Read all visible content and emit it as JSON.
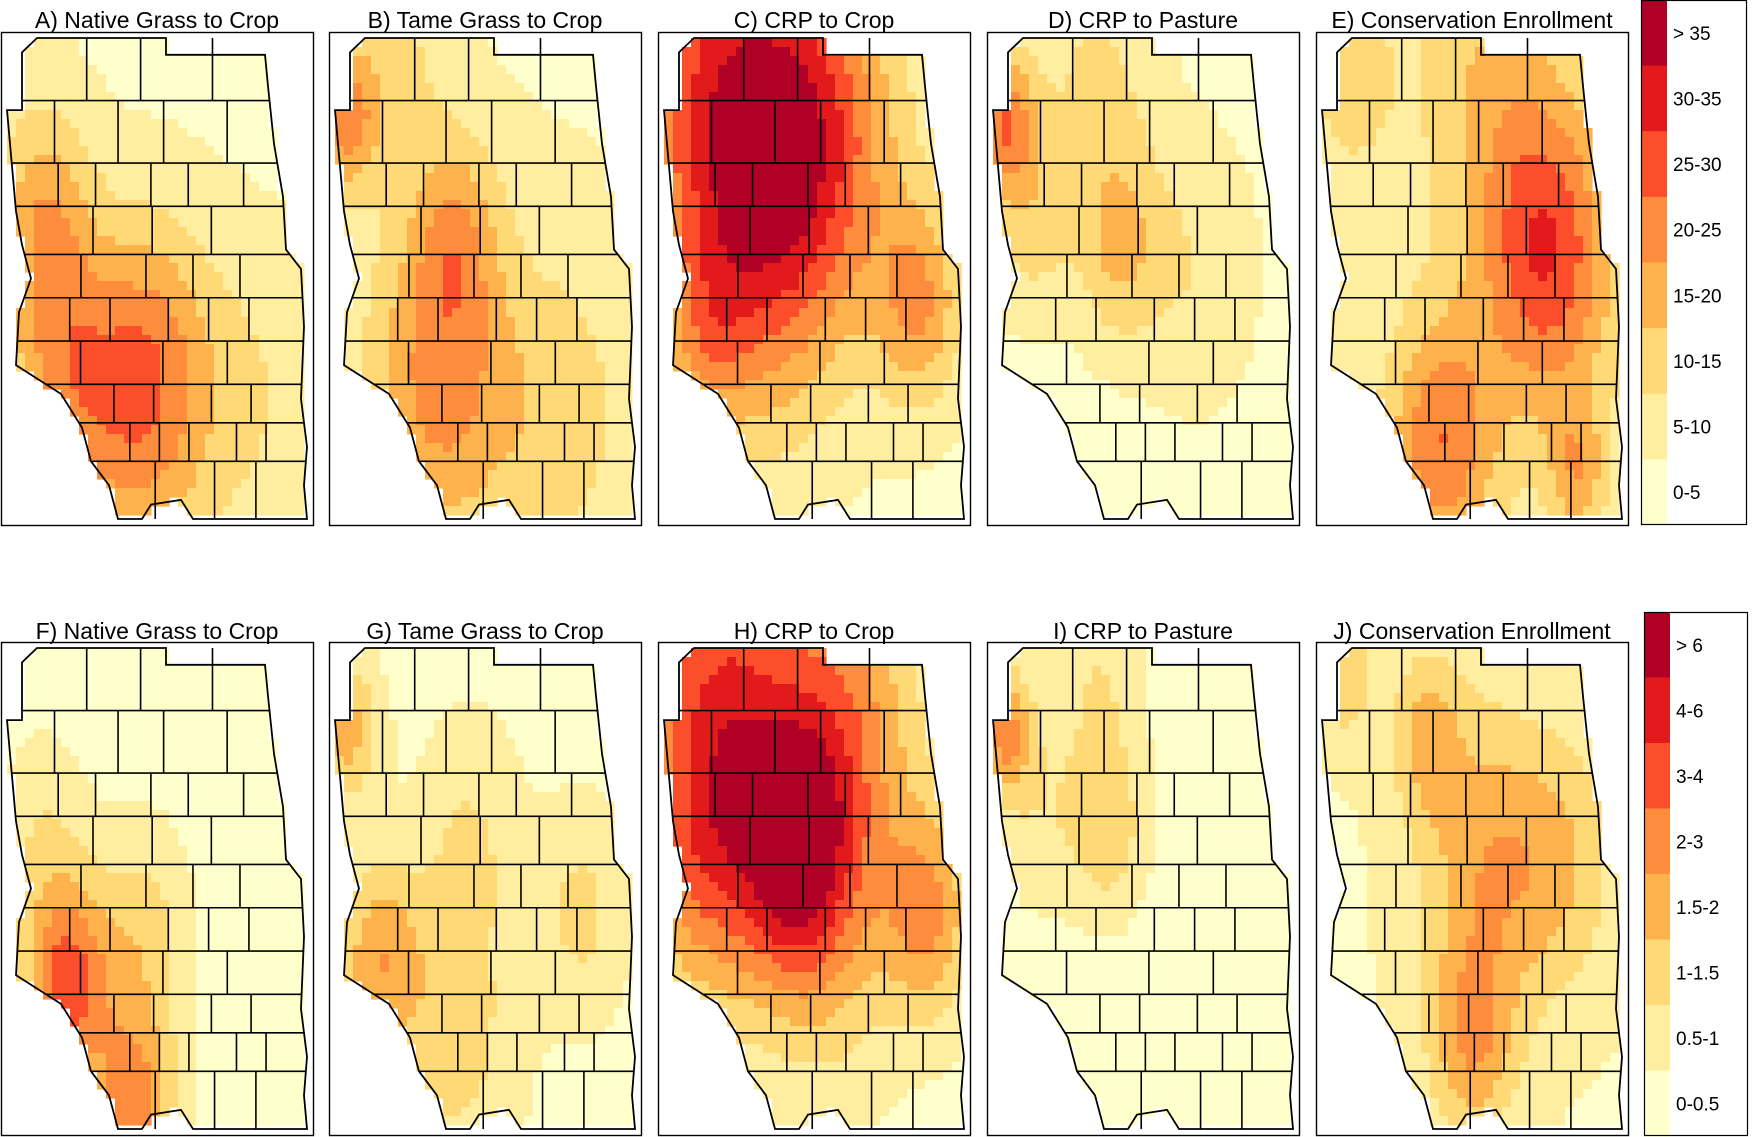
{
  "rows": [
    {
      "panels": [
        {
          "title": "A) Native Grass to Crop",
          "hotspots": [
            {
              "u": 0.2,
              "v": 0.7,
              "r": 0.2,
              "w": 3.2
            },
            {
              "u": 0.48,
              "v": 0.66,
              "r": 0.2,
              "w": 3.0
            },
            {
              "u": 0.12,
              "v": 0.36,
              "r": 0.16,
              "w": 2.6
            },
            {
              "u": 0.45,
              "v": 0.92,
              "r": 0.22,
              "w": 1.6
            },
            {
              "u": 0.8,
              "v": 0.75,
              "r": 0.22,
              "w": 1.2
            }
          ],
          "base": 0.8
        },
        {
          "title": "B) Tame Grass to Crop",
          "hotspots": [
            {
              "u": 0.35,
              "v": 0.71,
              "r": 0.24,
              "w": 3.5
            },
            {
              "u": 0.04,
              "v": 0.17,
              "r": 0.1,
              "w": 3.5
            },
            {
              "u": 0.4,
              "v": 0.4,
              "r": 0.14,
              "w": 2.2
            },
            {
              "u": 0.75,
              "v": 0.78,
              "r": 0.24,
              "w": 1.6
            },
            {
              "u": 0.2,
              "v": 0.05,
              "r": 0.15,
              "w": 1.4
            }
          ],
          "base": 0.9
        },
        {
          "title": "C) CRP to Crop",
          "hotspots": [
            {
              "u": 0.2,
              "v": 0.1,
              "r": 0.32,
              "w": 4.8
            },
            {
              "u": 0.55,
              "v": 0.18,
              "r": 0.26,
              "w": 3.2
            },
            {
              "u": 0.35,
              "v": 0.42,
              "r": 0.28,
              "w": 3.2
            },
            {
              "u": 0.85,
              "v": 0.55,
              "r": 0.15,
              "w": 3.2
            },
            {
              "u": 0.15,
              "v": 0.62,
              "r": 0.14,
              "w": 1.8
            }
          ],
          "base": 0.7
        },
        {
          "title": "D) CRP to Pasture",
          "hotspots": [
            {
              "u": 0.04,
              "v": 0.17,
              "r": 0.1,
              "w": 4.0
            },
            {
              "u": 0.42,
              "v": 0.44,
              "r": 0.14,
              "w": 2.2
            },
            {
              "u": 0.12,
              "v": 0.38,
              "r": 0.14,
              "w": 1.8
            },
            {
              "u": 0.35,
              "v": 0.1,
              "r": 0.2,
              "w": 1.6
            },
            {
              "u": 0.68,
              "v": 0.48,
              "r": 0.2,
              "w": 1.3
            }
          ],
          "base": 0.6
        },
        {
          "title": "E) Conservation Enrollment",
          "hotspots": [
            {
              "u": 0.75,
              "v": 0.45,
              "r": 0.22,
              "w": 4.8
            },
            {
              "u": 0.4,
              "v": 0.84,
              "r": 0.18,
              "w": 3.8
            },
            {
              "u": 0.85,
              "v": 0.9,
              "r": 0.1,
              "w": 2.4
            },
            {
              "u": 0.55,
              "v": 0.08,
              "r": 0.24,
              "w": 1.7
            },
            {
              "u": 0.1,
              "v": 0.08,
              "r": 0.15,
              "w": 1.4
            }
          ],
          "base": 1.1
        }
      ],
      "legend": {
        "labels": [
          "> 35",
          "30-35",
          "25-30",
          "20-25",
          "15-20",
          "10-15",
          "5-10",
          "0-5"
        ]
      }
    },
    {
      "panels": [
        {
          "title": "F) Native Grass to Crop",
          "hotspots": [
            {
              "u": 0.2,
              "v": 0.7,
              "r": 0.14,
              "w": 4.8
            },
            {
              "u": 0.42,
              "v": 0.96,
              "r": 0.14,
              "w": 4.0
            },
            {
              "u": 0.45,
              "v": 0.6,
              "r": 0.16,
              "w": 2.0
            },
            {
              "u": 0.12,
              "v": 0.4,
              "r": 0.15,
              "w": 1.4
            }
          ],
          "base": 0.5
        },
        {
          "title": "G) Tame Grass to Crop",
          "hotspots": [
            {
              "u": 0.15,
              "v": 0.65,
              "r": 0.14,
              "w": 3.0
            },
            {
              "u": 0.04,
              "v": 0.17,
              "r": 0.1,
              "w": 2.8
            },
            {
              "u": 0.4,
              "v": 0.8,
              "r": 0.2,
              "w": 1.8
            },
            {
              "u": 0.82,
              "v": 0.55,
              "r": 0.14,
              "w": 1.6
            },
            {
              "u": 0.45,
              "v": 0.4,
              "r": 0.16,
              "w": 1.3
            }
          ],
          "base": 0.7
        },
        {
          "title": "H) CRP to Crop",
          "hotspots": [
            {
              "u": 0.2,
              "v": 0.1,
              "r": 0.3,
              "w": 4.8
            },
            {
              "u": 0.45,
              "v": 0.43,
              "r": 0.18,
              "w": 4.6
            },
            {
              "u": 0.62,
              "v": 0.15,
              "r": 0.24,
              "w": 3.2
            },
            {
              "u": 0.88,
              "v": 0.55,
              "r": 0.15,
              "w": 3.4
            },
            {
              "u": 0.15,
              "v": 0.45,
              "r": 0.22,
              "w": 2.8
            },
            {
              "u": 0.55,
              "v": 0.6,
              "r": 0.24,
              "w": 1.8
            }
          ],
          "base": 0.6
        },
        {
          "title": "I) CRP to Pasture",
          "hotspots": [
            {
              "u": 0.04,
              "v": 0.17,
              "r": 0.09,
              "w": 3.8
            },
            {
              "u": 0.38,
              "v": 0.37,
              "r": 0.13,
              "w": 2.2
            },
            {
              "u": 0.35,
              "v": 0.05,
              "r": 0.15,
              "w": 1.4
            },
            {
              "u": 0.15,
              "v": 0.35,
              "r": 0.14,
              "w": 1.2
            }
          ],
          "base": 0.5
        },
        {
          "title": "J) Conservation Enrollment",
          "hotspots": [
            {
              "u": 0.55,
              "v": 0.45,
              "r": 0.22,
              "w": 2.8
            },
            {
              "u": 0.5,
              "v": 0.82,
              "r": 0.14,
              "w": 2.8
            },
            {
              "u": 0.35,
              "v": 0.18,
              "r": 0.12,
              "w": 2.2
            },
            {
              "u": 0.08,
              "v": 0.05,
              "r": 0.1,
              "w": 1.9
            },
            {
              "u": 0.8,
              "v": 0.45,
              "r": 0.18,
              "w": 1.8
            }
          ],
          "base": 0.9
        }
      ],
      "legend": {
        "labels": [
          "> 6",
          "4-6",
          "3-4",
          "2-3",
          "1.5-2",
          "1-1.5",
          "0.5-1",
          "0-0.5"
        ]
      }
    }
  ],
  "colors": [
    "#ffffcc",
    "#ffeda0",
    "#fed976",
    "#feb24c",
    "#fd8d3c",
    "#fc4e2a",
    "#e31a1c",
    "#b10026"
  ]
}
